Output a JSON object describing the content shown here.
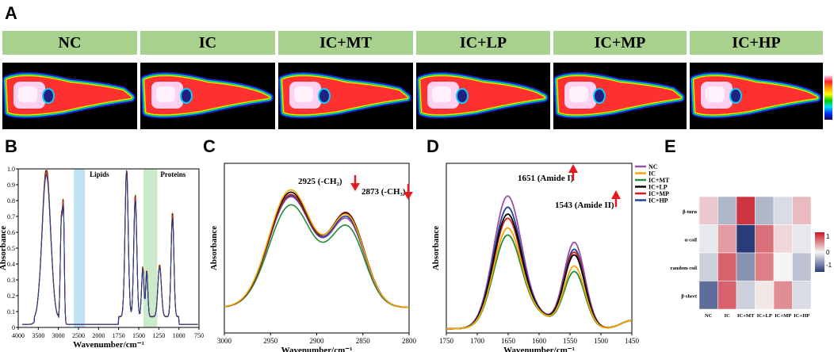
{
  "panel_labels": [
    "A",
    "B",
    "C",
    "D",
    "E"
  ],
  "groups": [
    "NC",
    "IC",
    "IC+MT",
    "IC+LP",
    "IC+MP",
    "IC+HP"
  ],
  "colors": {
    "NC": "#9b4fa5",
    "IC": "#f5a800",
    "IC+MT": "#238b3a",
    "IC+LP": "#000000",
    "IC+MP": "#d81e1e",
    "IC+HP": "#1f3f9a",
    "banner": "#a9d18e",
    "lipid_band": "#a8d8ee",
    "protein_band": "#b9e2b9"
  },
  "chart_data": [
    {
      "id": "B",
      "type": "line",
      "title": "",
      "xlabel": "Wavenumber/cm⁻¹",
      "ylabel": "Absorbance",
      "xlim": [
        4000,
        750
      ],
      "ylim": [
        0,
        1.0
      ],
      "xticks": [
        "4000",
        "3500",
        "3000",
        "2500",
        "2000",
        "1750",
        "1500",
        "1250",
        "1000",
        "750"
      ],
      "yticks": [
        "0",
        "0.1",
        "0.2",
        "0.3",
        "0.4",
        "0.5",
        "0.6",
        "0.7",
        "0.8",
        "0.9",
        "1.0"
      ],
      "bands": [
        {
          "label": "Lipids",
          "from": 3000,
          "to": 2800
        },
        {
          "label": "Proteins",
          "from": 1750,
          "to": 1500
        }
      ],
      "peaks": [
        {
          "x": 3300,
          "y": 0.96
        },
        {
          "x": 2925,
          "y": 0.67
        },
        {
          "x": 2873,
          "y": 0.64
        },
        {
          "x": 1651,
          "y": 0.97
        },
        {
          "x": 1543,
          "y": 0.78
        },
        {
          "x": 1450,
          "y": 0.32
        },
        {
          "x": 1400,
          "y": 0.3
        },
        {
          "x": 1240,
          "y": 0.33
        },
        {
          "x": 1080,
          "y": 0.67
        }
      ],
      "series_scale": [
        {
          "name": "NC",
          "scale": 0.97
        },
        {
          "name": "IC",
          "scale": 1.0
        },
        {
          "name": "IC+MT",
          "scale": 0.96
        },
        {
          "name": "IC+LP",
          "scale": 0.99
        },
        {
          "name": "IC+MP",
          "scale": 0.98
        },
        {
          "name": "IC+HP",
          "scale": 0.95
        }
      ]
    },
    {
      "id": "C",
      "type": "line",
      "xlabel": "Wavenumber/cm⁻¹",
      "ylabel": "Absorbance",
      "xlim": [
        3000,
        2800
      ],
      "xticks": [
        "3000",
        "2950",
        "2900",
        "2850",
        "2800"
      ],
      "annotations": [
        "2925 (-CH₂)",
        "2873 (-CH₃)"
      ],
      "series": [
        {
          "name": "NC",
          "p1": 0.87,
          "p2": 0.8
        },
        {
          "name": "IC",
          "p1": 0.93,
          "p2": 0.84
        },
        {
          "name": "IC+MT",
          "p1": 0.8,
          "p2": 0.73
        },
        {
          "name": "IC+LP",
          "p1": 0.91,
          "p2": 0.85
        },
        {
          "name": "IC+MP",
          "p1": 0.89,
          "p2": 0.86
        },
        {
          "name": "IC+HP",
          "p1": 0.88,
          "p2": 0.82
        }
      ]
    },
    {
      "id": "D",
      "type": "line",
      "xlabel": "Wavenumber/cm⁻¹",
      "ylabel": "Absorbance",
      "xlim": [
        1750,
        1450
      ],
      "xticks": [
        "1750",
        "1700",
        "1650",
        "1600",
        "1550",
        "1500",
        "1450"
      ],
      "annotations": [
        "1651 (Amide I)",
        "1543 (Amide II)"
      ],
      "legend": [
        "NC",
        "IC",
        "IC+MT",
        "IC+LP",
        "IC+MP",
        "IC+HP"
      ],
      "series": [
        {
          "name": "NC",
          "p1": 0.95,
          "p2": 0.62
        },
        {
          "name": "IC",
          "p1": 0.72,
          "p2": 0.45
        },
        {
          "name": "IC+MT",
          "p1": 0.67,
          "p2": 0.41
        },
        {
          "name": "IC+LP",
          "p1": 0.82,
          "p2": 0.53
        },
        {
          "name": "IC+MP",
          "p1": 0.79,
          "p2": 0.55
        },
        {
          "name": "IC+HP",
          "p1": 0.87,
          "p2": 0.57
        }
      ]
    },
    {
      "id": "E",
      "type": "heatmap",
      "rows": [
        "β-turn",
        "α-coil",
        "random coil",
        "β-sheet"
      ],
      "cols": [
        "NC",
        "IC",
        "IC+MT",
        "IC+LP",
        "IC+MP",
        "IC+HP"
      ],
      "values": [
        [
          0.3,
          -0.5,
          1.3,
          -0.5,
          -0.2,
          0.4
        ],
        [
          -0.1,
          0.6,
          -1.5,
          0.9,
          0.2,
          -0.1
        ],
        [
          -0.3,
          1.0,
          -0.8,
          0.8,
          0.0,
          -0.4
        ],
        [
          -1.1,
          1.0,
          -0.3,
          0.1,
          0.7,
          -0.2
        ]
      ],
      "colorbar": {
        "min": -1.5,
        "max": 1.5,
        "ticks": [
          "1",
          "0",
          "-1"
        ]
      }
    }
  ]
}
